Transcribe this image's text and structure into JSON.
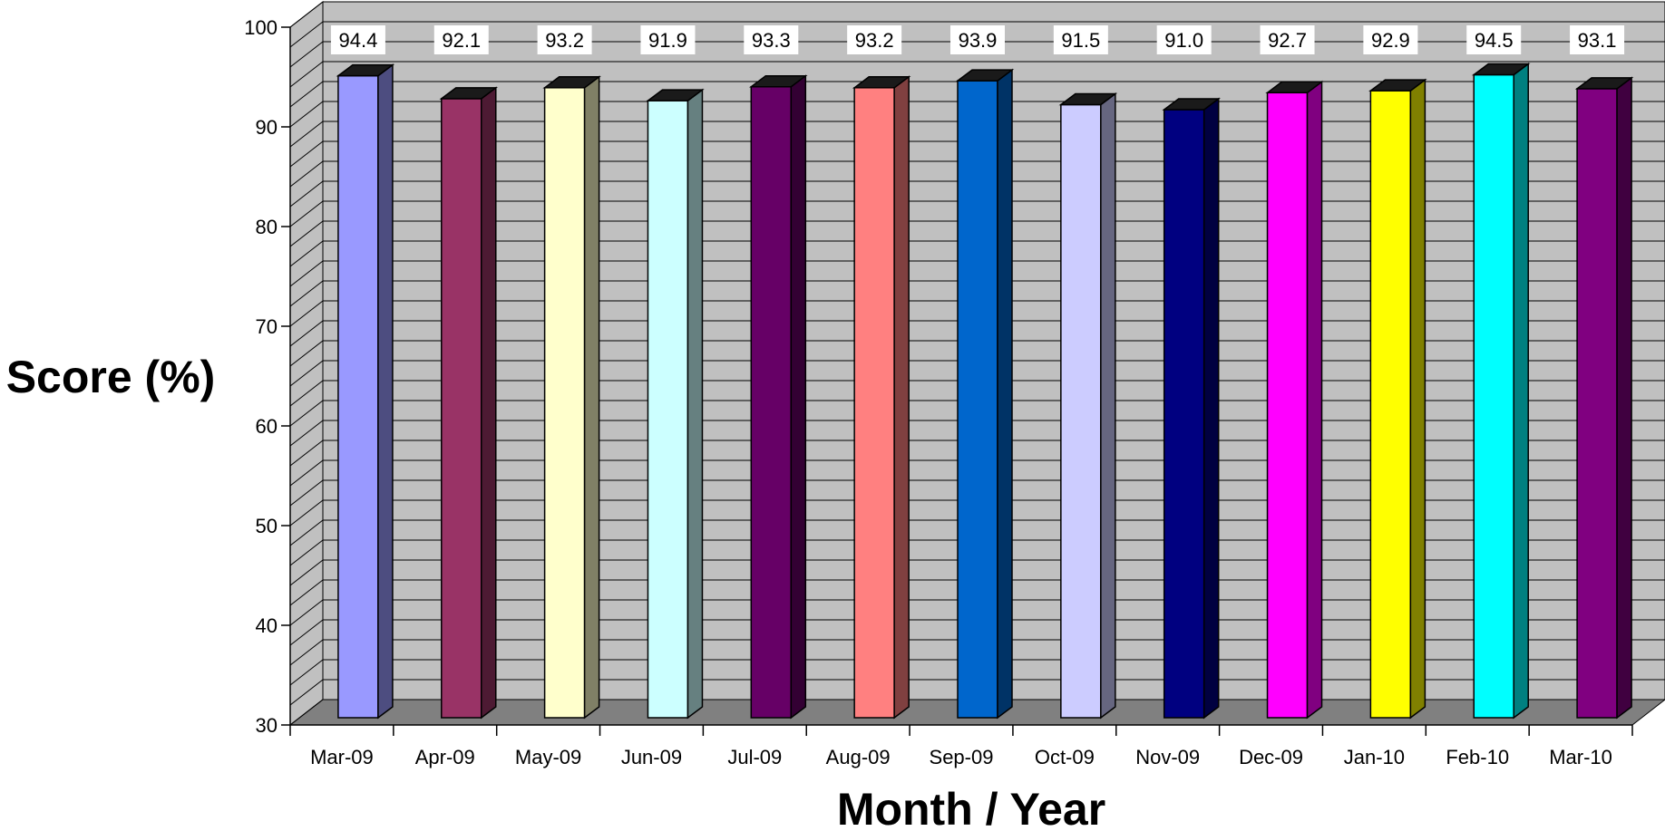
{
  "chart_data": {
    "type": "bar",
    "title": "",
    "xlabel": "Month / Year",
    "ylabel": "Score (%)",
    "ylim": [
      30,
      100
    ],
    "yticks": [
      30,
      40,
      50,
      60,
      70,
      80,
      90,
      100
    ],
    "categories": [
      "Mar-09",
      "Apr-09",
      "May-09",
      "Jun-09",
      "Jul-09",
      "Aug-09",
      "Sep-09",
      "Oct-09",
      "Nov-09",
      "Dec-09",
      "Jan-10",
      "Feb-10",
      "Mar-10"
    ],
    "values": [
      94.4,
      92.1,
      93.2,
      91.9,
      93.3,
      93.2,
      93.9,
      91.5,
      91.0,
      92.7,
      92.9,
      94.5,
      93.1
    ],
    "data_labels": [
      "94.4",
      "92.1",
      "93.2",
      "91.9",
      "93.3",
      "93.2",
      "93.9",
      "91.5",
      "91.0",
      "92.7",
      "92.9",
      "94.5",
      "93.1"
    ],
    "bar_colors": [
      "#9999ff",
      "#993366",
      "#ffffcc",
      "#ccffff",
      "#660066",
      "#ff8080",
      "#0066cc",
      "#ccccff",
      "#000080",
      "#ff00ff",
      "#ffff00",
      "#00ffff",
      "#800080"
    ],
    "grid": true,
    "legend": "none",
    "style": "3d-column",
    "wall_color": "#c0c0c0",
    "floor_color": "#808080"
  }
}
